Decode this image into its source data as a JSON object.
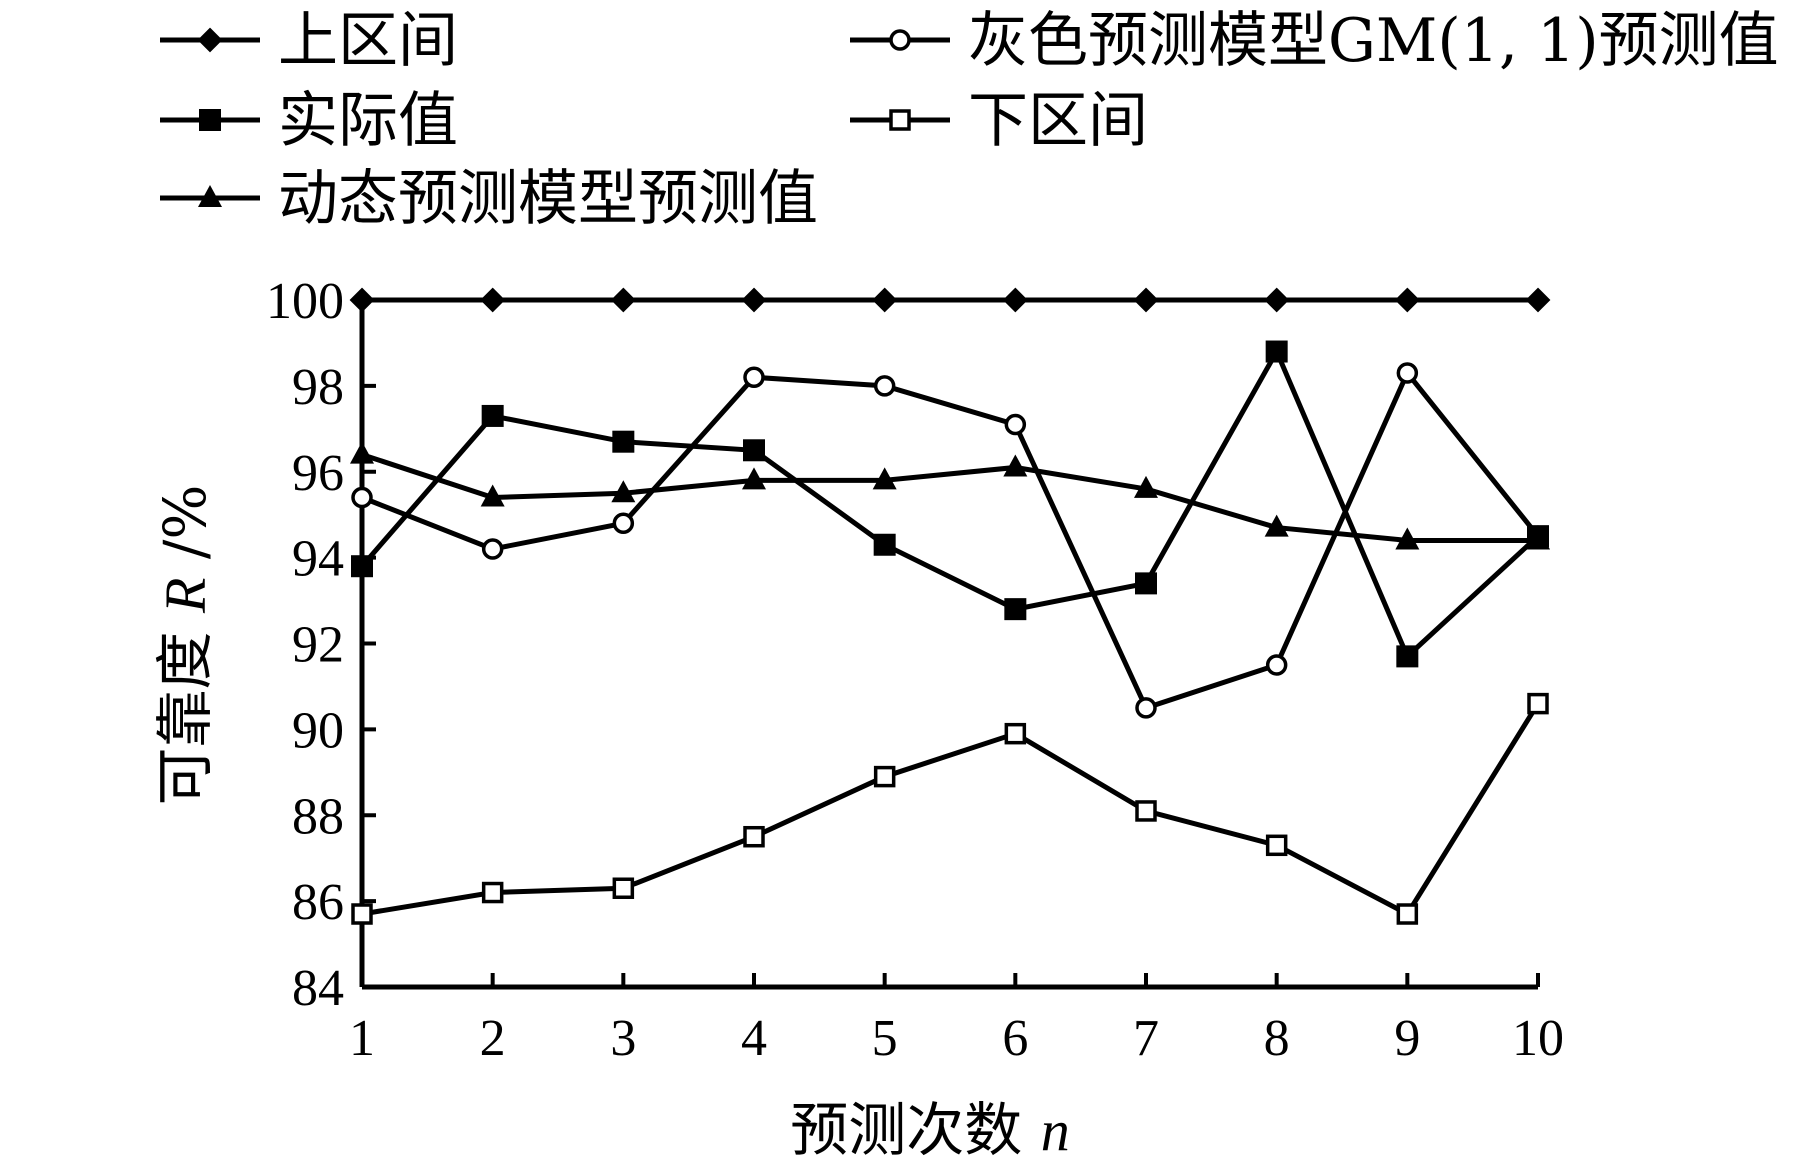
{
  "chart_data": {
    "type": "line",
    "title": "",
    "xlabel": "预测次数",
    "xlabel_var": "n",
    "ylabel": "可靠度",
    "ylabel_var": "R",
    "ylabel_unit": "/%",
    "x": [
      1,
      2,
      3,
      4,
      5,
      6,
      7,
      8,
      9,
      10
    ],
    "x_tick_labels": [
      "1",
      "2",
      "3",
      "4",
      "5",
      "6",
      "7",
      "8",
      "9",
      "10"
    ],
    "ylim": [
      84,
      100
    ],
    "y_ticks": [
      84,
      86,
      88,
      90,
      92,
      94,
      96,
      98,
      100
    ],
    "y_tick_labels": [
      "84",
      "86",
      "88",
      "90",
      "92",
      "94",
      "96",
      "98",
      "100"
    ],
    "grid": false,
    "legend_position": "top",
    "series": [
      {
        "name": "上区间",
        "marker": "diamond-filled",
        "values": [
          100,
          100,
          100,
          100,
          100,
          100,
          100,
          100,
          100,
          100
        ]
      },
      {
        "name": "灰色预测模型GM(1, 1)预测值",
        "marker": "circle-open",
        "values": [
          95.4,
          94.2,
          94.8,
          98.2,
          98.0,
          97.1,
          90.5,
          91.5,
          98.3,
          94.5
        ]
      },
      {
        "name": "实际值",
        "marker": "square-filled",
        "values": [
          93.8,
          97.3,
          96.7,
          96.5,
          94.3,
          92.8,
          93.4,
          98.8,
          91.7,
          94.5
        ]
      },
      {
        "name": "下区间",
        "marker": "square-open",
        "values": [
          85.7,
          86.2,
          86.3,
          87.5,
          88.9,
          89.9,
          88.1,
          87.3,
          85.7,
          90.6
        ]
      },
      {
        "name": "动态预测模型预测值",
        "marker": "triangle-filled",
        "values": [
          96.4,
          95.4,
          95.5,
          95.8,
          95.8,
          96.1,
          95.6,
          94.7,
          94.4,
          94.4
        ]
      }
    ]
  }
}
